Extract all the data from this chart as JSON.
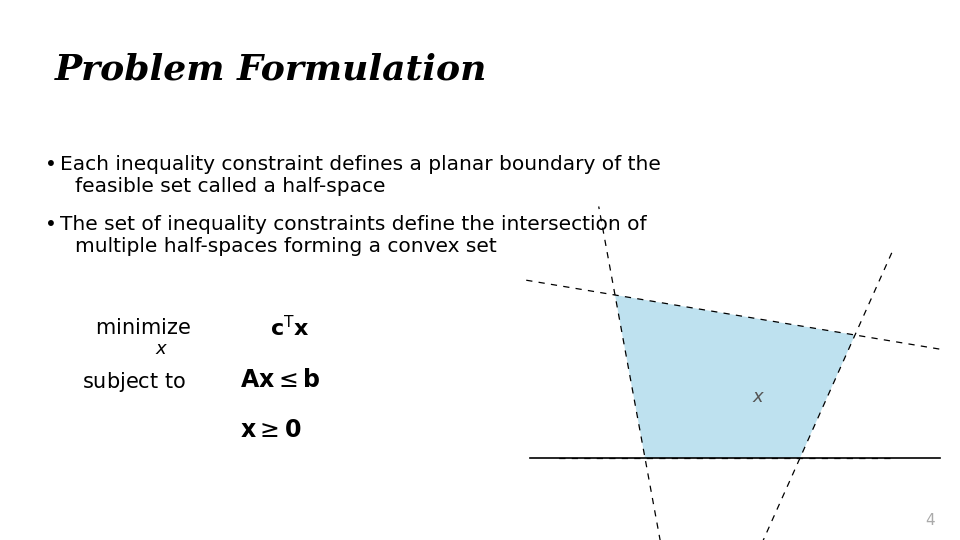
{
  "title": "Problem Formulation",
  "title_fontsize": 26,
  "title_style": "italic",
  "title_weight": "bold",
  "background_color": "#ffffff",
  "text_color": "#000000",
  "bullet1_line1": "Each inequality constraint defines a planar boundary of the",
  "bullet1_line2": "feasible set called a half-space",
  "bullet2_line1": "The set of inequality constraints define the intersection of",
  "bullet2_line2": "multiple half-spaces forming a convex set",
  "bullet_fontsize": 14.5,
  "formula_fontsize": 15,
  "poly_color": "#a8d8ea",
  "poly_alpha": 0.75,
  "page_number": "4"
}
